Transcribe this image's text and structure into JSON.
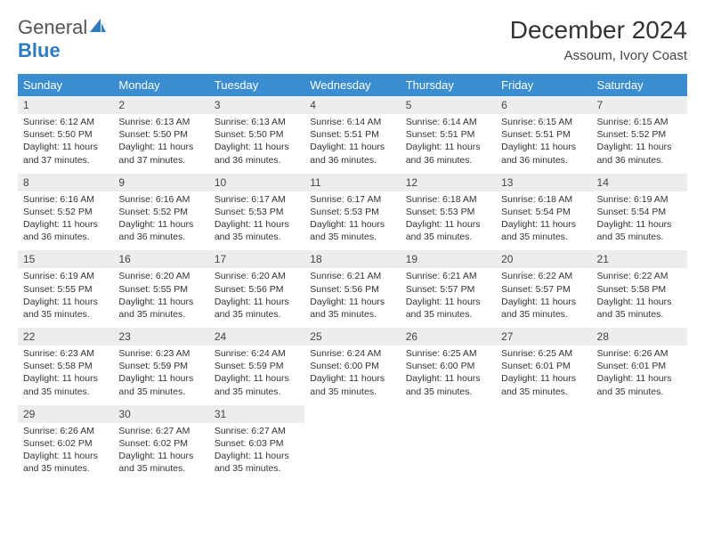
{
  "logo": {
    "general": "General",
    "blue": "Blue"
  },
  "title": "December 2024",
  "location": "Assoum, Ivory Coast",
  "colors": {
    "header_bg": "#3a8dd0",
    "daynum_bg": "#eceded",
    "row_border": "#3a8dd0",
    "text": "#333333",
    "logo_blue": "#2e7cc0"
  },
  "weekdays": [
    "Sunday",
    "Monday",
    "Tuesday",
    "Wednesday",
    "Thursday",
    "Friday",
    "Saturday"
  ],
  "weeks": [
    [
      {
        "n": "1",
        "sr": "6:12 AM",
        "ss": "5:50 PM",
        "dl": "11 hours and 37 minutes."
      },
      {
        "n": "2",
        "sr": "6:13 AM",
        "ss": "5:50 PM",
        "dl": "11 hours and 37 minutes."
      },
      {
        "n": "3",
        "sr": "6:13 AM",
        "ss": "5:50 PM",
        "dl": "11 hours and 36 minutes."
      },
      {
        "n": "4",
        "sr": "6:14 AM",
        "ss": "5:51 PM",
        "dl": "11 hours and 36 minutes."
      },
      {
        "n": "5",
        "sr": "6:14 AM",
        "ss": "5:51 PM",
        "dl": "11 hours and 36 minutes."
      },
      {
        "n": "6",
        "sr": "6:15 AM",
        "ss": "5:51 PM",
        "dl": "11 hours and 36 minutes."
      },
      {
        "n": "7",
        "sr": "6:15 AM",
        "ss": "5:52 PM",
        "dl": "11 hours and 36 minutes."
      }
    ],
    [
      {
        "n": "8",
        "sr": "6:16 AM",
        "ss": "5:52 PM",
        "dl": "11 hours and 36 minutes."
      },
      {
        "n": "9",
        "sr": "6:16 AM",
        "ss": "5:52 PM",
        "dl": "11 hours and 36 minutes."
      },
      {
        "n": "10",
        "sr": "6:17 AM",
        "ss": "5:53 PM",
        "dl": "11 hours and 35 minutes."
      },
      {
        "n": "11",
        "sr": "6:17 AM",
        "ss": "5:53 PM",
        "dl": "11 hours and 35 minutes."
      },
      {
        "n": "12",
        "sr": "6:18 AM",
        "ss": "5:53 PM",
        "dl": "11 hours and 35 minutes."
      },
      {
        "n": "13",
        "sr": "6:18 AM",
        "ss": "5:54 PM",
        "dl": "11 hours and 35 minutes."
      },
      {
        "n": "14",
        "sr": "6:19 AM",
        "ss": "5:54 PM",
        "dl": "11 hours and 35 minutes."
      }
    ],
    [
      {
        "n": "15",
        "sr": "6:19 AM",
        "ss": "5:55 PM",
        "dl": "11 hours and 35 minutes."
      },
      {
        "n": "16",
        "sr": "6:20 AM",
        "ss": "5:55 PM",
        "dl": "11 hours and 35 minutes."
      },
      {
        "n": "17",
        "sr": "6:20 AM",
        "ss": "5:56 PM",
        "dl": "11 hours and 35 minutes."
      },
      {
        "n": "18",
        "sr": "6:21 AM",
        "ss": "5:56 PM",
        "dl": "11 hours and 35 minutes."
      },
      {
        "n": "19",
        "sr": "6:21 AM",
        "ss": "5:57 PM",
        "dl": "11 hours and 35 minutes."
      },
      {
        "n": "20",
        "sr": "6:22 AM",
        "ss": "5:57 PM",
        "dl": "11 hours and 35 minutes."
      },
      {
        "n": "21",
        "sr": "6:22 AM",
        "ss": "5:58 PM",
        "dl": "11 hours and 35 minutes."
      }
    ],
    [
      {
        "n": "22",
        "sr": "6:23 AM",
        "ss": "5:58 PM",
        "dl": "11 hours and 35 minutes."
      },
      {
        "n": "23",
        "sr": "6:23 AM",
        "ss": "5:59 PM",
        "dl": "11 hours and 35 minutes."
      },
      {
        "n": "24",
        "sr": "6:24 AM",
        "ss": "5:59 PM",
        "dl": "11 hours and 35 minutes."
      },
      {
        "n": "25",
        "sr": "6:24 AM",
        "ss": "6:00 PM",
        "dl": "11 hours and 35 minutes."
      },
      {
        "n": "26",
        "sr": "6:25 AM",
        "ss": "6:00 PM",
        "dl": "11 hours and 35 minutes."
      },
      {
        "n": "27",
        "sr": "6:25 AM",
        "ss": "6:01 PM",
        "dl": "11 hours and 35 minutes."
      },
      {
        "n": "28",
        "sr": "6:26 AM",
        "ss": "6:01 PM",
        "dl": "11 hours and 35 minutes."
      }
    ],
    [
      {
        "n": "29",
        "sr": "6:26 AM",
        "ss": "6:02 PM",
        "dl": "11 hours and 35 minutes."
      },
      {
        "n": "30",
        "sr": "6:27 AM",
        "ss": "6:02 PM",
        "dl": "11 hours and 35 minutes."
      },
      {
        "n": "31",
        "sr": "6:27 AM",
        "ss": "6:03 PM",
        "dl": "11 hours and 35 minutes."
      },
      null,
      null,
      null,
      null
    ]
  ],
  "labels": {
    "sunrise": "Sunrise:",
    "sunset": "Sunset:",
    "daylight": "Daylight:"
  }
}
